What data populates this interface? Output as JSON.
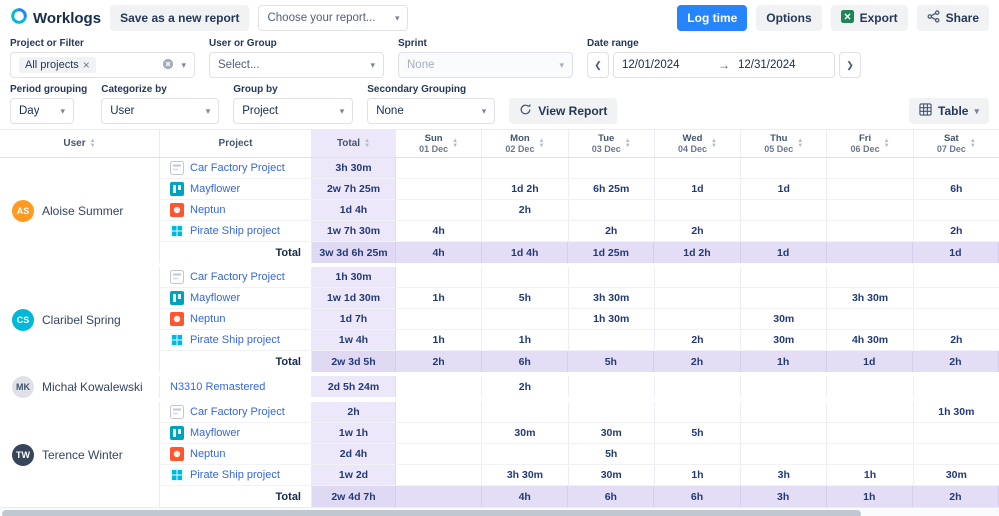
{
  "topbar": {
    "logo": "Worklogs",
    "save_report": "Save as a new report",
    "choose_report": "Choose your report...",
    "log_time": "Log time",
    "options": "Options",
    "export": "Export",
    "share": "Share"
  },
  "filters": {
    "project": {
      "label": "Project or Filter",
      "chip": "All projects"
    },
    "user": {
      "label": "User or Group",
      "placeholder": "Select..."
    },
    "sprint": {
      "label": "Sprint",
      "value": "None"
    },
    "date": {
      "label": "Date range",
      "from": "12/01/2024",
      "to": "12/31/2024"
    },
    "period": {
      "label": "Period grouping",
      "value": "Day"
    },
    "categorize": {
      "label": "Categorize by",
      "value": "User"
    },
    "group_by": {
      "label": "Group by",
      "value": "Project"
    },
    "secondary": {
      "label": "Secondary Grouping",
      "value": "None"
    },
    "view_report": "View Report",
    "view_mode": "Table"
  },
  "colors": {
    "accent_blue": "#2684FF",
    "export_green": "#1F845A",
    "total_column_bg": "#ECE7F9",
    "total_row_bg": "#E4DDF6",
    "project_link_blue": "#3567DE",
    "value_navy": "#243A76"
  },
  "table": {
    "col_user": "User",
    "col_project": "Project",
    "col_total": "Total",
    "total_label": "Total",
    "days": [
      {
        "day": "Sun",
        "date": "01 Dec"
      },
      {
        "day": "Mon",
        "date": "02 Dec"
      },
      {
        "day": "Tue",
        "date": "03 Dec"
      },
      {
        "day": "Wed",
        "date": "04 Dec"
      },
      {
        "day": "Thu",
        "date": "05 Dec"
      },
      {
        "day": "Fri",
        "date": "06 Dec"
      },
      {
        "day": "Sat",
        "date": "07 Dec"
      }
    ],
    "groups": [
      {
        "user": "Aloise Summer",
        "initials": "AS",
        "avatar_bg": "#FF991F",
        "avatar_fg": "#FFFFFF",
        "rows": [
          {
            "project": "Car Factory Project",
            "icon": "car-factory-project-icon",
            "total": "3h 30m",
            "cells": [
              "",
              "",
              "",
              "",
              "",
              "",
              ""
            ]
          },
          {
            "project": "Mayflower",
            "icon": "mayflower-icon",
            "total": "2w 7h 25m",
            "cells": [
              "",
              "1d 2h",
              "6h 25m",
              "1d",
              "1d",
              "",
              "6h"
            ]
          },
          {
            "project": "Neptun",
            "icon": "neptun-icon",
            "total": "1d 4h",
            "cells": [
              "",
              "2h",
              "",
              "",
              "",
              "",
              ""
            ]
          },
          {
            "project": "Pirate Ship project",
            "icon": "pirate-ship-project-icon",
            "total": "1w 7h 30m",
            "cells": [
              "4h",
              "",
              "2h",
              "2h",
              "",
              "",
              "2h"
            ]
          }
        ],
        "total": {
          "total": "3w 3d 6h 25m",
          "cells": [
            "4h",
            "1d 4h",
            "1d 25m",
            "1d 2h",
            "1d",
            "",
            "1d"
          ]
        }
      },
      {
        "user": "Claribel Spring",
        "initials": "CS",
        "avatar_bg": "#00B8D9",
        "avatar_fg": "#FFFFFF",
        "rows": [
          {
            "project": "Car Factory Project",
            "icon": "car-factory-project-icon",
            "total": "1h 30m",
            "cells": [
              "",
              "",
              "",
              "",
              "",
              "",
              ""
            ]
          },
          {
            "project": "Mayflower",
            "icon": "mayflower-icon",
            "total": "1w 1d 30m",
            "cells": [
              "1h",
              "5h",
              "3h 30m",
              "",
              "",
              "3h 30m",
              ""
            ]
          },
          {
            "project": "Neptun",
            "icon": "neptun-icon",
            "total": "1d 7h",
            "cells": [
              "",
              "",
              "1h 30m",
              "",
              "30m",
              "",
              ""
            ]
          },
          {
            "project": "Pirate Ship project",
            "icon": "pirate-ship-project-icon",
            "total": "1w 4h",
            "cells": [
              "1h",
              "1h",
              "",
              "2h",
              "30m",
              "4h 30m",
              "2h"
            ]
          }
        ],
        "total": {
          "total": "2w 3d 5h",
          "cells": [
            "2h",
            "6h",
            "5h",
            "2h",
            "1h",
            "1d",
            "2h"
          ]
        }
      },
      {
        "user": "Michał Kowalewski",
        "initials": "MK",
        "avatar_bg": "#DFE1E6",
        "avatar_fg": "#42526E",
        "rows": [
          {
            "project": "N3310 Remastered",
            "icon": null,
            "total": "2d 5h 24m",
            "cells": [
              "",
              "2h",
              "",
              "",
              "",
              "",
              ""
            ]
          }
        ],
        "total": null
      },
      {
        "user": "Terence Winter",
        "initials": "TW",
        "avatar_bg": "#36455A",
        "avatar_fg": "#FFFFFF",
        "rows": [
          {
            "project": "Car Factory Project",
            "icon": "car-factory-project-icon",
            "total": "2h",
            "cells": [
              "",
              "",
              "",
              "",
              "",
              "",
              "1h 30m"
            ]
          },
          {
            "project": "Mayflower",
            "icon": "mayflower-icon",
            "total": "1w 1h",
            "cells": [
              "",
              "30m",
              "30m",
              "5h",
              "",
              "",
              ""
            ]
          },
          {
            "project": "Neptun",
            "icon": "neptun-icon",
            "total": "2d 4h",
            "cells": [
              "",
              "",
              "5h",
              "",
              "",
              "",
              ""
            ]
          },
          {
            "project": "Pirate Ship project",
            "icon": "pirate-ship-project-icon",
            "total": "1w 2d",
            "cells": [
              "",
              "3h 30m",
              "30m",
              "1h",
              "3h",
              "1h",
              "30m"
            ]
          }
        ],
        "total": {
          "total": "2w 4d 7h",
          "cells": [
            "",
            "4h",
            "6h",
            "6h",
            "3h",
            "1h",
            "2h"
          ]
        }
      }
    ]
  }
}
